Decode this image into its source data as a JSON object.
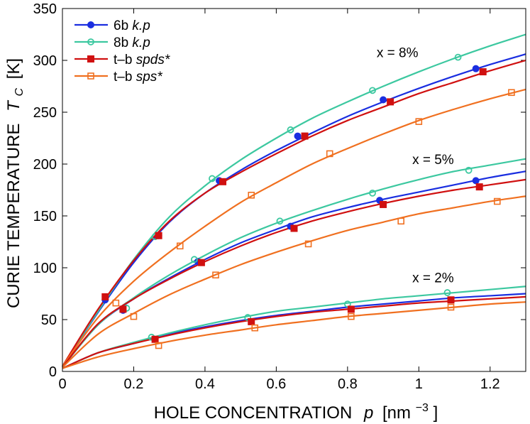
{
  "chart_data": {
    "type": "line",
    "title": "",
    "xlabel": "HOLE CONCENTRATION",
    "xlabel_symbol": "p",
    "xlabel_unit_open": "[nm",
    "xlabel_unit_exp": "−3",
    "xlabel_unit_close": "]",
    "ylabel": "CURIE TEMPERATURE",
    "ylabel_symbol": "T",
    "ylabel_sub": "C",
    "ylabel_unit": "[K]",
    "xlim": [
      0,
      1.3
    ],
    "ylim": [
      0,
      350
    ],
    "xticks": [
      0,
      0.2,
      0.4,
      0.6,
      0.8,
      1,
      1.2
    ],
    "xtick_labels": [
      "0",
      "0.2",
      "0.4",
      "0.6",
      "0.8",
      "1",
      "1.2"
    ],
    "yticks": [
      0,
      50,
      100,
      150,
      200,
      250,
      300,
      350
    ],
    "ytick_labels": [
      "0",
      "50",
      "100",
      "150",
      "200",
      "250",
      "300",
      "350"
    ],
    "grid": false,
    "legend_position": "top-left",
    "legend": [
      {
        "key": "6b",
        "prefix": "6b ",
        "italic": "k.p",
        "color": "#1a2ee0",
        "marker": "filled-circle"
      },
      {
        "key": "8b",
        "prefix": "8b ",
        "italic": "k.p",
        "color": "#3cc8a0",
        "marker": "open-circle"
      },
      {
        "key": "spds",
        "prefix": "t–b ",
        "italic": "spds*",
        "color": "#d01010",
        "marker": "filled-square"
      },
      {
        "key": "sps",
        "prefix": "t–b ",
        "italic": "sps*",
        "color": "#f07020",
        "marker": "open-square"
      }
    ],
    "annotations": [
      {
        "text": "x = 8%",
        "at": [
          0.94,
          303
        ]
      },
      {
        "text": "x = 5%",
        "at": [
          1.04,
          200
        ]
      },
      {
        "text": "x = 2%",
        "at": [
          1.04,
          86
        ]
      }
    ],
    "series": [
      {
        "name": "6b k.p, x = 8%",
        "model": "6b",
        "x_pct": 8,
        "curve": {
          "x": [
            0,
            0.1,
            0.2,
            0.3,
            0.4,
            0.5,
            0.6,
            0.7,
            0.8,
            0.9,
            1.0,
            1.1,
            1.2,
            1.3
          ],
          "y": [
            5,
            57,
            105,
            144,
            172,
            194,
            213,
            230,
            246,
            260,
            273,
            285,
            296,
            306
          ]
        },
        "markers": {
          "x": [
            0.12,
            0.27,
            0.44,
            0.66,
            0.9,
            1.16
          ],
          "y": [
            69,
            131,
            184,
            227,
            262,
            292
          ]
        }
      },
      {
        "name": "8b k.p, x = 8%",
        "model": "8b",
        "x_pct": 8,
        "curve": {
          "x": [
            0,
            0.1,
            0.2,
            0.3,
            0.4,
            0.5,
            0.6,
            0.7,
            0.8,
            0.9,
            1.0,
            1.1,
            1.2,
            1.3
          ],
          "y": [
            5,
            58,
            108,
            149,
            179,
            204,
            225,
            244,
            260,
            275,
            289,
            302,
            314,
            325
          ]
        },
        "markers": {
          "x": [
            0.26,
            0.42,
            0.64,
            0.87,
            1.11
          ],
          "y": [
            130,
            186,
            233,
            271,
            303
          ]
        }
      },
      {
        "name": "t-b spds*, x = 8%",
        "model": "spds",
        "x_pct": 8,
        "curve": {
          "x": [
            0,
            0.1,
            0.2,
            0.3,
            0.4,
            0.5,
            0.6,
            0.7,
            0.8,
            0.9,
            1.0,
            1.1,
            1.2,
            1.3
          ],
          "y": [
            5,
            60,
            107,
            145,
            172,
            192,
            210,
            227,
            242,
            255,
            268,
            279,
            290,
            300
          ]
        },
        "markers": {
          "x": [
            0.12,
            0.27,
            0.45,
            0.68,
            0.92,
            1.18
          ],
          "y": [
            72,
            131,
            183,
            227,
            260,
            289
          ]
        }
      },
      {
        "name": "t-b sps*, x = 8%",
        "model": "sps",
        "x_pct": 8,
        "curve": {
          "x": [
            0,
            0.1,
            0.2,
            0.3,
            0.4,
            0.5,
            0.6,
            0.7,
            0.8,
            0.9,
            1.0,
            1.1,
            1.2,
            1.3
          ],
          "y": [
            5,
            52,
            87,
            115,
            140,
            163,
            182,
            200,
            215,
            229,
            242,
            253,
            263,
            272
          ]
        },
        "markers": {
          "x": [
            0.15,
            0.33,
            0.53,
            0.75,
            1.0,
            1.26
          ],
          "y": [
            66,
            121,
            170,
            210,
            241,
            269
          ]
        }
      },
      {
        "name": "6b k.p, x = 5%",
        "model": "6b",
        "x_pct": 5,
        "curve": {
          "x": [
            0,
            0.1,
            0.2,
            0.3,
            0.4,
            0.5,
            0.6,
            0.7,
            0.8,
            0.9,
            1.0,
            1.1,
            1.2,
            1.3
          ],
          "y": [
            4,
            45,
            70,
            90,
            108,
            124,
            137,
            149,
            158,
            166,
            173,
            180,
            187,
            193
          ]
        },
        "markers": {
          "x": [
            0.17,
            0.38,
            0.64,
            0.89,
            1.16
          ],
          "y": [
            59,
            106,
            140,
            165,
            184
          ]
        }
      },
      {
        "name": "8b k.p, x = 5%",
        "model": "8b",
        "x_pct": 5,
        "curve": {
          "x": [
            0,
            0.1,
            0.2,
            0.3,
            0.4,
            0.5,
            0.6,
            0.7,
            0.8,
            0.9,
            1.0,
            1.1,
            1.2,
            1.3
          ],
          "y": [
            4,
            45,
            71,
            93,
            112,
            129,
            143,
            155,
            166,
            176,
            185,
            193,
            199,
            205
          ]
        },
        "markers": {
          "x": [
            0.18,
            0.37,
            0.61,
            0.87,
            1.14
          ],
          "y": [
            61,
            108,
            145,
            172,
            194
          ]
        }
      },
      {
        "name": "t-b spds*, x = 5%",
        "model": "spds",
        "x_pct": 5,
        "curve": {
          "x": [
            0,
            0.1,
            0.2,
            0.3,
            0.4,
            0.5,
            0.6,
            0.7,
            0.8,
            0.9,
            1.0,
            1.1,
            1.2,
            1.3
          ],
          "y": [
            4,
            46,
            70,
            89,
            106,
            121,
            134,
            145,
            154,
            162,
            169,
            175,
            180,
            185
          ]
        },
        "markers": {
          "x": [
            0.17,
            0.39,
            0.65,
            0.9,
            1.17
          ],
          "y": [
            60,
            105,
            138,
            161,
            178
          ]
        }
      },
      {
        "name": "t-b sps*, x = 5%",
        "model": "sps",
        "x_pct": 5,
        "curve": {
          "x": [
            0,
            0.1,
            0.2,
            0.3,
            0.4,
            0.5,
            0.6,
            0.7,
            0.8,
            0.9,
            1.0,
            1.1,
            1.2,
            1.3
          ],
          "y": [
            4,
            36,
            56,
            74,
            89,
            103,
            115,
            126,
            136,
            144,
            152,
            158,
            164,
            169
          ]
        },
        "markers": {
          "x": [
            0.2,
            0.43,
            0.69,
            0.95,
            1.22
          ],
          "y": [
            53,
            93,
            123,
            145,
            164
          ]
        }
      },
      {
        "name": "6b k.p, x = 2%",
        "model": "6b",
        "x_pct": 2,
        "curve": {
          "x": [
            0,
            0.1,
            0.2,
            0.3,
            0.4,
            0.5,
            0.6,
            0.7,
            0.8,
            0.9,
            1.0,
            1.1,
            1.2,
            1.3
          ],
          "y": [
            3,
            18,
            27,
            36,
            43,
            49,
            54,
            58,
            62,
            65,
            68,
            71,
            73,
            75
          ]
        },
        "markers": {
          "x": [],
          "y": []
        }
      },
      {
        "name": "8b k.p, x = 2%",
        "model": "8b",
        "x_pct": 2,
        "curve": {
          "x": [
            0,
            0.1,
            0.2,
            0.3,
            0.4,
            0.5,
            0.6,
            0.7,
            0.8,
            0.9,
            1.0,
            1.1,
            1.2,
            1.3
          ],
          "y": [
            3,
            18,
            28,
            37,
            45,
            52,
            58,
            62,
            66,
            70,
            73,
            76,
            79,
            82
          ]
        },
        "markers": {
          "x": [
            0.25,
            0.52,
            0.8,
            1.08
          ],
          "y": [
            33,
            52,
            65,
            76
          ]
        }
      },
      {
        "name": "t-b spds*, x = 2%",
        "model": "spds",
        "x_pct": 2,
        "curve": {
          "x": [
            0,
            0.1,
            0.2,
            0.3,
            0.4,
            0.5,
            0.6,
            0.7,
            0.8,
            0.9,
            1.0,
            1.1,
            1.2,
            1.3
          ],
          "y": [
            3,
            18,
            27,
            35,
            42,
            48,
            53,
            57,
            60,
            63,
            66,
            68,
            70,
            72
          ]
        },
        "markers": {
          "x": [
            0.26,
            0.53,
            0.81,
            1.09
          ],
          "y": [
            31,
            48,
            60,
            69
          ]
        }
      },
      {
        "name": "t-b sps*, x = 2%",
        "model": "sps",
        "x_pct": 2,
        "curve": {
          "x": [
            0,
            0.1,
            0.2,
            0.3,
            0.4,
            0.5,
            0.6,
            0.7,
            0.8,
            0.9,
            1.0,
            1.1,
            1.2,
            1.3
          ],
          "y": [
            3,
            14,
            22,
            29,
            35,
            40,
            45,
            49,
            53,
            56,
            59,
            62,
            65,
            67
          ]
        },
        "markers": {
          "x": [
            0.27,
            0.54,
            0.81,
            1.09
          ],
          "y": [
            25,
            42,
            53,
            62
          ]
        }
      }
    ]
  }
}
